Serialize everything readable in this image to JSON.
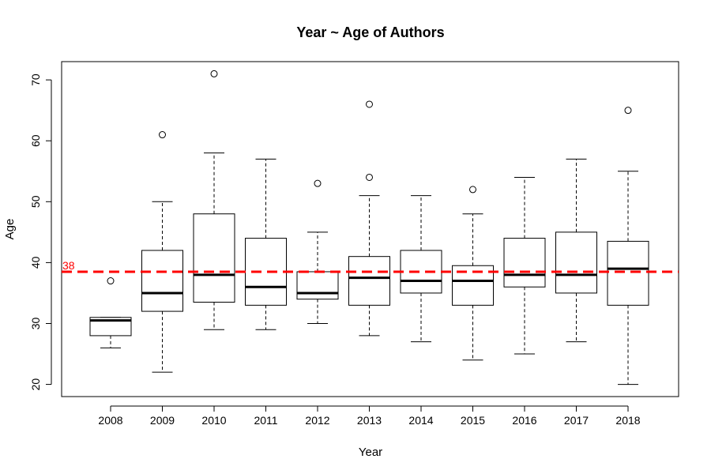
{
  "chart_data": {
    "type": "boxplot",
    "title": "Year ~ Age of Authors",
    "xlabel": "Year",
    "ylabel": "Age",
    "ylim": [
      18,
      73
    ],
    "yticks": [
      20,
      30,
      40,
      50,
      60,
      70
    ],
    "grid": false,
    "categories": [
      "2008",
      "2009",
      "2010",
      "2011",
      "2012",
      "2013",
      "2014",
      "2015",
      "2016",
      "2017",
      "2018"
    ],
    "boxes": [
      {
        "whisker_low": 26,
        "q1": 28,
        "median": 30.5,
        "q3": 31,
        "whisker_high": 31,
        "outliers": [
          37
        ]
      },
      {
        "whisker_low": 22,
        "q1": 32,
        "median": 35,
        "q3": 42,
        "whisker_high": 50,
        "outliers": [
          61
        ]
      },
      {
        "whisker_low": 29,
        "q1": 33.5,
        "median": 38,
        "q3": 48,
        "whisker_high": 58,
        "outliers": [
          71
        ]
      },
      {
        "whisker_low": 29,
        "q1": 33,
        "median": 36,
        "q3": 44,
        "whisker_high": 57,
        "outliers": []
      },
      {
        "whisker_low": 30,
        "q1": 34,
        "median": 35,
        "q3": 38.5,
        "whisker_high": 45,
        "outliers": [
          53
        ]
      },
      {
        "whisker_low": 28,
        "q1": 33,
        "median": 37.5,
        "q3": 41,
        "whisker_high": 51,
        "outliers": [
          54,
          66
        ]
      },
      {
        "whisker_low": 27,
        "q1": 35,
        "median": 37,
        "q3": 42,
        "whisker_high": 51,
        "outliers": []
      },
      {
        "whisker_low": 24,
        "q1": 33,
        "median": 37,
        "q3": 39.5,
        "whisker_high": 48,
        "outliers": [
          52
        ]
      },
      {
        "whisker_low": 25,
        "q1": 36,
        "median": 38,
        "q3": 44,
        "whisker_high": 54,
        "outliers": []
      },
      {
        "whisker_low": 27,
        "q1": 35,
        "median": 38,
        "q3": 45,
        "whisker_high": 57,
        "outliers": []
      },
      {
        "whisker_low": 20,
        "q1": 33,
        "median": 39,
        "q3": 43.5,
        "whisker_high": 55,
        "outliers": [
          65
        ]
      }
    ],
    "reference_line": {
      "value": 38.5,
      "label": "38",
      "color": "#ff0000"
    }
  }
}
